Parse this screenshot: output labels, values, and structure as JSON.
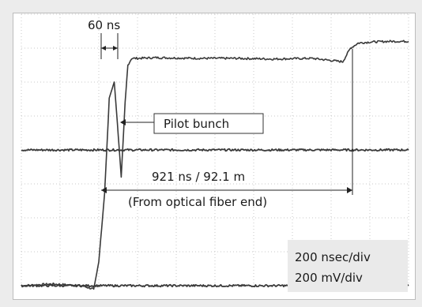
{
  "chart_data": {
    "type": "line",
    "grid": true,
    "x_scale_label": "200 nsec/div",
    "y_scale_label": "200 mV/div",
    "divisions": {
      "x": 10,
      "y": 8
    },
    "annotations": {
      "pulse_width": "60 ns",
      "pilot": "Pilot bunch",
      "delay_line1": "921 ns / 92.1 m",
      "delay_line2": "(From optical fiber end)"
    },
    "series": [
      {
        "x_div": [
          0.0,
          0.8,
          1.55,
          1.87,
          2.0,
          2.15,
          2.27,
          2.4,
          2.48,
          2.58,
          2.68,
          2.75,
          2.85,
          3.0,
          3.5,
          4.5,
          5.5,
          6.5,
          7.5,
          8.3,
          8.5,
          8.7,
          9.0,
          9.5,
          10.0
        ],
        "y_div": [
          -4.0,
          -3.95,
          -4.0,
          -4.1,
          -3.3,
          -1.3,
          1.5,
          2.0,
          0.8,
          -0.8,
          1.4,
          2.5,
          2.7,
          2.7,
          2.72,
          2.7,
          2.7,
          2.68,
          2.7,
          2.6,
          3.0,
          3.15,
          3.18,
          3.2,
          3.2
        ]
      },
      {
        "x_div": [
          0.0,
          10.0
        ],
        "y_div": [
          0.0,
          0.0
        ]
      },
      {
        "x_div": [
          0.0,
          10.0
        ],
        "y_div": [
          -4.0,
          -4.0
        ]
      }
    ]
  }
}
